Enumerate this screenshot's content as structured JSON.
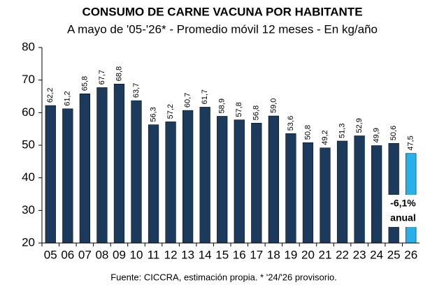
{
  "chart_data": {
    "type": "bar",
    "title": "CONSUMO DE CARNE VACUNA POR HABITANTE",
    "subtitle": "A mayo de '05-'26* - Promedio móvil 12 meses -  En kg/año",
    "categories": [
      "05",
      "06",
      "07",
      "08",
      "09",
      "10",
      "11",
      "12",
      "13",
      "14",
      "15",
      "16",
      "17",
      "18",
      "19",
      "20",
      "21",
      "22",
      "23",
      "24",
      "25",
      "26"
    ],
    "values": [
      62.2,
      61.2,
      65.8,
      67.7,
      68.8,
      63.7,
      56.3,
      57.2,
      60.7,
      61.7,
      58.9,
      57.8,
      56.8,
      59.0,
      53.6,
      50.8,
      49.2,
      51.3,
      52.9,
      49.9,
      50.6,
      47.5
    ],
    "value_labels": [
      "62,2",
      "61,2",
      "65,8",
      "67,7",
      "68,8",
      "63,7",
      "56,3",
      "57,2",
      "60,7",
      "61,7",
      "58,9",
      "57,8",
      "56,8",
      "59,0",
      "53,6",
      "50,8",
      "49,2",
      "51,3",
      "52,9",
      "49,9",
      "50,6",
      "47,5"
    ],
    "colors": [
      "#1b3a5c",
      "#1b3a5c",
      "#1b3a5c",
      "#1b3a5c",
      "#1b3a5c",
      "#1b3a5c",
      "#1b3a5c",
      "#1b3a5c",
      "#1b3a5c",
      "#1b3a5c",
      "#1b3a5c",
      "#1b3a5c",
      "#1b3a5c",
      "#1b3a5c",
      "#1b3a5c",
      "#1b3a5c",
      "#1b3a5c",
      "#1b3a5c",
      "#1b3a5c",
      "#1b3a5c",
      "#1b3a5c",
      "#29b0e8"
    ],
    "ylim": [
      20,
      80
    ],
    "yticks": [
      20,
      30,
      40,
      50,
      60,
      70,
      80
    ],
    "grid": false,
    "annotation": [
      "-6,1%",
      "anual"
    ],
    "source": "Fuente: CICCRA, estimación propia. * '24/'26 provisorio."
  }
}
